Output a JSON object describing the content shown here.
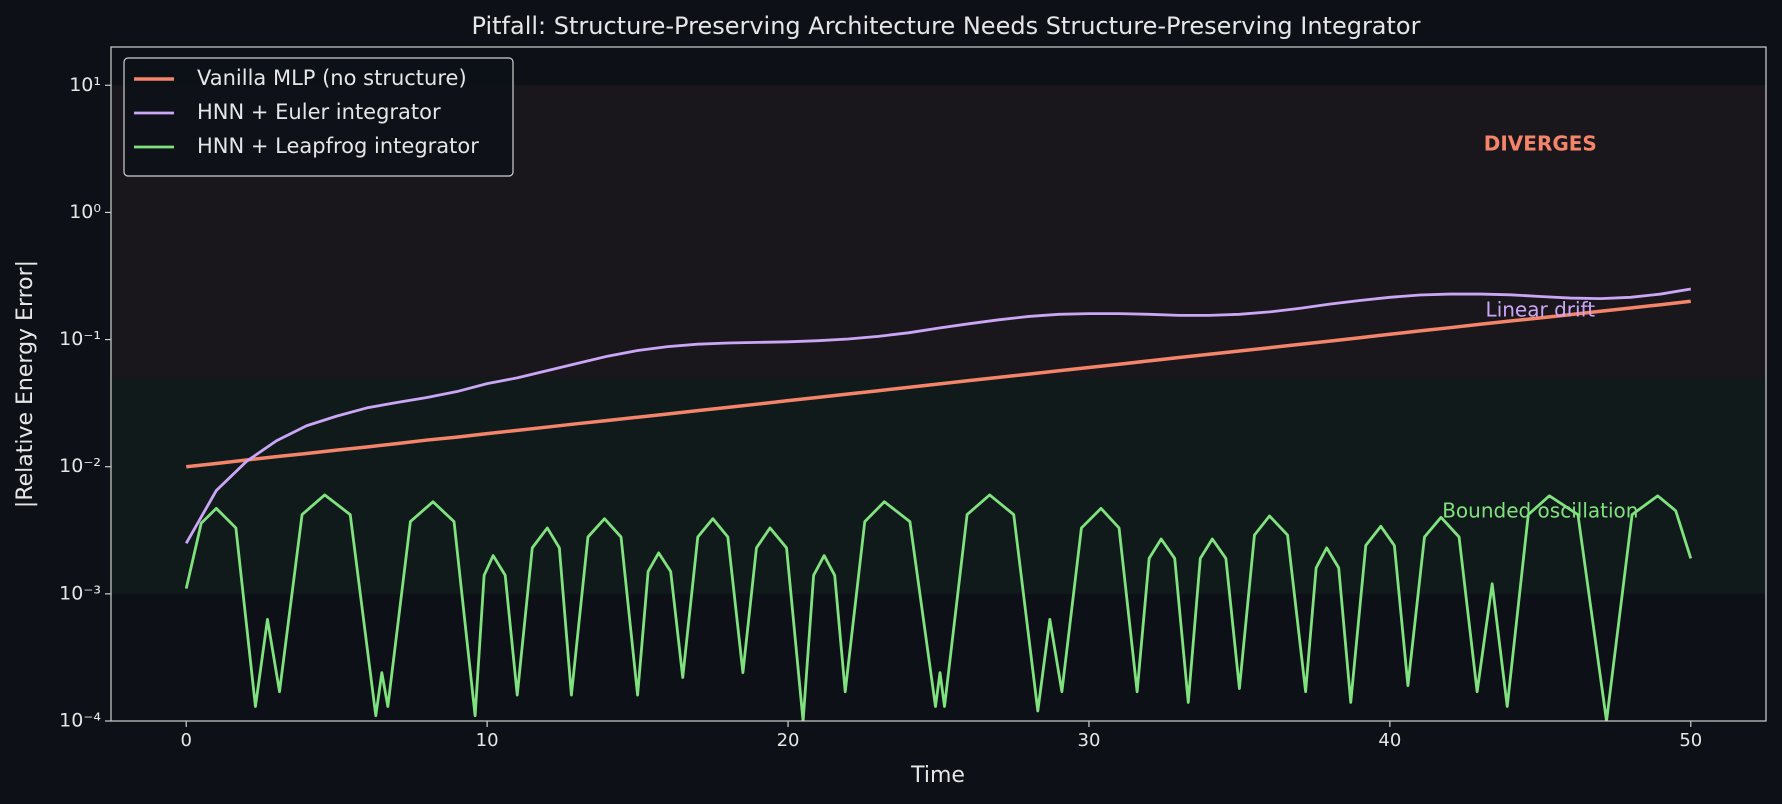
{
  "chart_data": {
    "type": "line",
    "title": "Pitfall: Structure-Preserving Architecture Needs Structure-Preserving Integrator",
    "xlabel": "Time",
    "ylabel": "|Relative Energy Error|",
    "yscale": "log",
    "xlim": [
      -2.5,
      52.5
    ],
    "ylim": [
      0.0001,
      20
    ],
    "xticks": [
      0,
      10,
      20,
      30,
      40,
      50
    ],
    "yticks": [
      {
        "value": 0.0001,
        "label": "10⁻⁴"
      },
      {
        "value": 0.001,
        "label": "10⁻³"
      },
      {
        "value": 0.01,
        "label": "10⁻²"
      },
      {
        "value": 0.1,
        "label": "10⁻¹"
      },
      {
        "value": 1,
        "label": "10⁰"
      },
      {
        "value": 10,
        "label": "10¹"
      }
    ],
    "legend": "upper left",
    "bands": [
      {
        "range": [
          0.05,
          10
        ],
        "color": "#1a171c"
      },
      {
        "range": [
          0.001,
          0.05
        ],
        "color": "#111a1b"
      }
    ],
    "annotations": [
      {
        "text": "DIVERGES",
        "x": 45,
        "y": 3.4,
        "color": "#f4846a",
        "bold": true
      },
      {
        "text": "Linear drift",
        "x": 45,
        "y": 0.167,
        "color": "#cba6f7"
      },
      {
        "text": "Bounded oscillation",
        "x": 45,
        "y": 0.0044,
        "color": "#80e27e"
      }
    ],
    "series": [
      {
        "name": "Vanilla MLP (no structure)",
        "color": "#f4846a",
        "width": 3.5,
        "x": [
          0,
          1,
          2,
          3,
          4,
          5,
          6,
          7,
          8,
          9,
          10,
          11,
          12,
          13,
          14,
          15,
          16,
          17,
          18,
          19,
          20,
          21,
          22,
          23,
          24,
          25,
          26,
          27,
          28,
          29,
          30,
          31,
          32,
          33,
          34,
          35,
          36,
          37,
          38,
          39,
          40,
          41,
          42,
          43,
          44,
          45,
          46,
          47,
          48,
          49,
          50
        ],
        "values": [
          0.01,
          0.0106,
          0.0113,
          0.012,
          0.0127,
          0.0135,
          0.0143,
          0.0152,
          0.0162,
          0.0171,
          0.0182,
          0.0193,
          0.0205,
          0.0218,
          0.0231,
          0.0245,
          0.026,
          0.0276,
          0.0293,
          0.0311,
          0.0331,
          0.0351,
          0.0373,
          0.0396,
          0.0421,
          0.0447,
          0.0475,
          0.0504,
          0.0535,
          0.0568,
          0.0603,
          0.064,
          0.068,
          0.0722,
          0.0766,
          0.0813,
          0.0863,
          0.0916,
          0.0973,
          0.1033,
          0.11,
          0.117,
          0.124,
          0.132,
          0.14,
          0.148,
          0.157,
          0.167,
          0.177,
          0.188,
          0.2
        ]
      },
      {
        "name": "HNN + Euler integrator",
        "color": "#cba6f7",
        "width": 2.8,
        "x": [
          0,
          1,
          2,
          3,
          4,
          5,
          6,
          7,
          8,
          9,
          10,
          11,
          12,
          13,
          14,
          15,
          16,
          17,
          18,
          19,
          20,
          21,
          22,
          23,
          24,
          25,
          26,
          27,
          28,
          29,
          30,
          31,
          32,
          33,
          34,
          35,
          36,
          37,
          38,
          39,
          40,
          41,
          42,
          43,
          44,
          45,
          46,
          47,
          48,
          49,
          50
        ],
        "values": [
          0.0025,
          0.0065,
          0.011,
          0.016,
          0.021,
          0.025,
          0.029,
          0.032,
          0.035,
          0.039,
          0.045,
          0.05,
          0.057,
          0.065,
          0.074,
          0.082,
          0.088,
          0.092,
          0.094,
          0.095,
          0.096,
          0.098,
          0.101,
          0.106,
          0.113,
          0.123,
          0.133,
          0.143,
          0.152,
          0.158,
          0.16,
          0.16,
          0.158,
          0.155,
          0.155,
          0.158,
          0.165,
          0.176,
          0.19,
          0.203,
          0.215,
          0.224,
          0.228,
          0.228,
          0.225,
          0.218,
          0.212,
          0.21,
          0.215,
          0.228,
          0.25
        ]
      },
      {
        "name": "HNN + Leapfrog integrator",
        "color": "#80e27e",
        "width": 2.8,
        "x": [
          0,
          0.5,
          1,
          1.65,
          2.3,
          2.7,
          3.1,
          3.85,
          4.6,
          5.45,
          6.3,
          6.5,
          6.7,
          7.45,
          8.2,
          8.9,
          9.6,
          9.9,
          10.2,
          10.6,
          11,
          11.5,
          12,
          12.4,
          12.8,
          13.35,
          13.9,
          14.45,
          15,
          15.35,
          15.7,
          16.1,
          16.5,
          17,
          17.5,
          18,
          18.5,
          18.95,
          19.4,
          19.95,
          20.5,
          20.85,
          21.2,
          21.55,
          21.9,
          22.55,
          23.2,
          24.05,
          24.9,
          25.05,
          25.2,
          25.95,
          26.7,
          27.5,
          28.3,
          28.7,
          29.1,
          29.75,
          30.4,
          31,
          31.6,
          32,
          32.4,
          32.85,
          33.3,
          33.7,
          34.1,
          34.55,
          35,
          35.5,
          36,
          36.6,
          37.2,
          37.55,
          37.9,
          38.3,
          38.7,
          39.2,
          39.7,
          40.15,
          40.6,
          41.15,
          41.7,
          42.3,
          42.9,
          43.4,
          43.9,
          44.6,
          45.3,
          46.25,
          47.2,
          48.05,
          48.9,
          49.5,
          50
        ],
        "values": [
          0.0011,
          0.0036,
          0.0047,
          0.0033,
          0.00013,
          0.00063,
          0.00017,
          0.0042,
          0.006,
          0.0042,
          0.00011,
          0.00024,
          0.00013,
          0.0037,
          0.0053,
          0.0037,
          0.00011,
          0.0014,
          0.002,
          0.0014,
          0.00016,
          0.0023,
          0.0033,
          0.0023,
          0.00016,
          0.0028,
          0.0039,
          0.0028,
          0.00016,
          0.0015,
          0.0021,
          0.0015,
          0.00022,
          0.0028,
          0.0039,
          0.0028,
          0.00024,
          0.0023,
          0.0033,
          0.0023,
          0.0001,
          0.0014,
          0.002,
          0.0014,
          0.00017,
          0.0037,
          0.0053,
          0.0037,
          0.00013,
          0.00024,
          0.00013,
          0.0042,
          0.006,
          0.0042,
          0.00012,
          0.00063,
          0.00017,
          0.0033,
          0.0047,
          0.0033,
          0.00017,
          0.0019,
          0.0027,
          0.0019,
          0.00014,
          0.0019,
          0.0027,
          0.0019,
          0.00018,
          0.0029,
          0.0041,
          0.0029,
          0.00017,
          0.0016,
          0.0023,
          0.0016,
          0.00014,
          0.0024,
          0.0034,
          0.0024,
          0.00019,
          0.0028,
          0.004,
          0.0028,
          0.00017,
          0.0012,
          0.00013,
          0.0042,
          0.0059,
          0.0042,
          0.0001,
          0.0042,
          0.0059,
          0.0045,
          0.0019
        ]
      }
    ]
  }
}
